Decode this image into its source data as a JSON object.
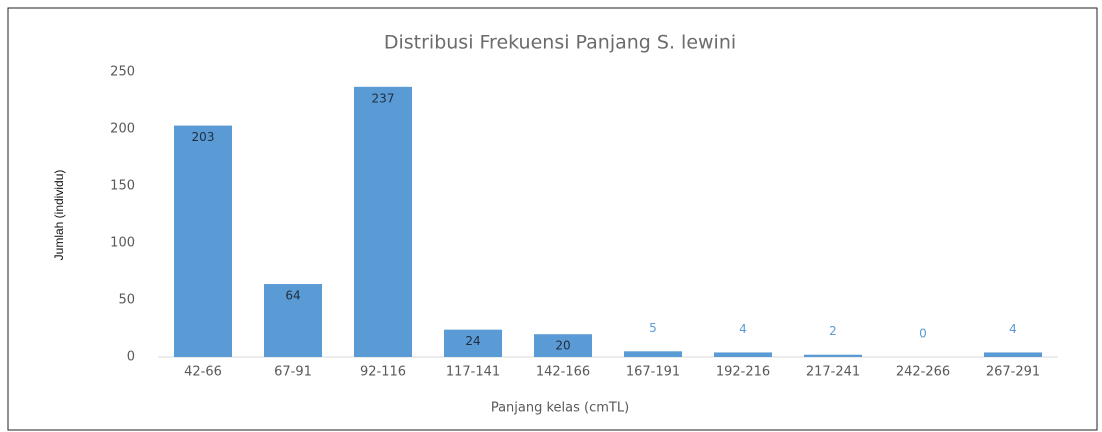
{
  "chart_data": {
    "type": "bar",
    "title": "Distribusi Frekuensi Panjang S. lewini",
    "categories": [
      "42-66",
      "67-91",
      "92-116",
      "117-141",
      "142-166",
      "167-191",
      "192-216",
      "217-241",
      "242-266",
      "267-291"
    ],
    "values": [
      203,
      64,
      237,
      24,
      20,
      5,
      4,
      2,
      0,
      4
    ],
    "color": "#5b9bd5",
    "x_label": "Panjang kelas (cmTL)",
    "y_label": "Jumlah (individu)",
    "ylim": [
      0,
      250
    ],
    "yticks": [
      0,
      50,
      100,
      150,
      200,
      250
    ],
    "grid": false
  }
}
